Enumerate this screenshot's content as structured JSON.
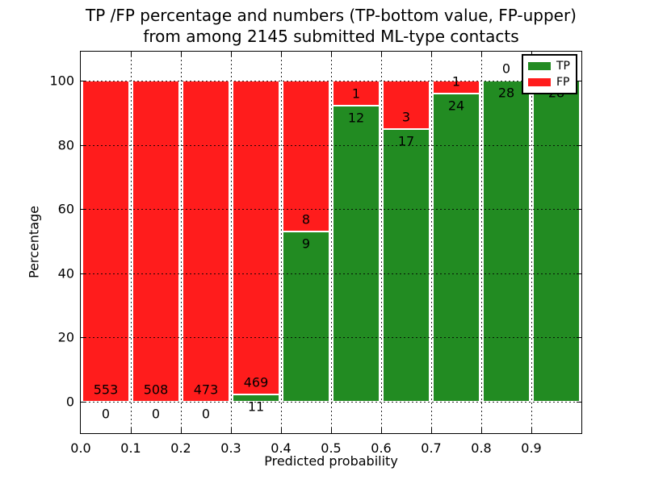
{
  "chart_data": {
    "type": "bar",
    "stacked": true,
    "title": {
      "line1": "TP /FP percentage and numbers (TP-bottom value, FP-upper)",
      "line2": "from among 2145 submitted ML-type contacts"
    },
    "xlabel": "Predicted probability",
    "ylabel": "Percentage",
    "x_ticks": [
      "0.0",
      "0.1",
      "0.2",
      "0.3",
      "0.4",
      "0.5",
      "0.6",
      "0.7",
      "0.8",
      "0.9"
    ],
    "y_ticks": [
      0,
      20,
      40,
      60,
      80,
      100
    ],
    "xlim": [
      0.0,
      1.0
    ],
    "ylim": [
      -10,
      109
    ],
    "grid": "dotted-black-on-top",
    "legend": {
      "position": "upper-right",
      "items": [
        {
          "label": "TP",
          "color": "#228b22"
        },
        {
          "label": "FP",
          "color": "#ff1c1c"
        }
      ]
    },
    "colors": {
      "tp": "#228b22",
      "fp": "#ff1c1c",
      "bar_edge": "#ffffff",
      "text": "#000000"
    },
    "bar_label_rule": "TP count printed below green-segment top, FP count printed above it",
    "bins": [
      {
        "x0": 0.0,
        "x1": 0.1,
        "tp": 0,
        "fp": 553
      },
      {
        "x0": 0.1,
        "x1": 0.2,
        "tp": 0,
        "fp": 508
      },
      {
        "x0": 0.2,
        "x1": 0.3,
        "tp": 0,
        "fp": 473
      },
      {
        "x0": 0.3,
        "x1": 0.4,
        "tp": 11,
        "fp": 469
      },
      {
        "x0": 0.4,
        "x1": 0.5,
        "tp": 9,
        "fp": 8
      },
      {
        "x0": 0.5,
        "x1": 0.6,
        "tp": 12,
        "fp": 1
      },
      {
        "x0": 0.6,
        "x1": 0.7,
        "tp": 17,
        "fp": 3
      },
      {
        "x0": 0.7,
        "x1": 0.8,
        "tp": 24,
        "fp": 1
      },
      {
        "x0": 0.8,
        "x1": 0.9,
        "tp": 28,
        "fp": 0
      },
      {
        "x0": 0.9,
        "x1": 1.0,
        "tp": 28,
        "fp": 0
      }
    ]
  }
}
